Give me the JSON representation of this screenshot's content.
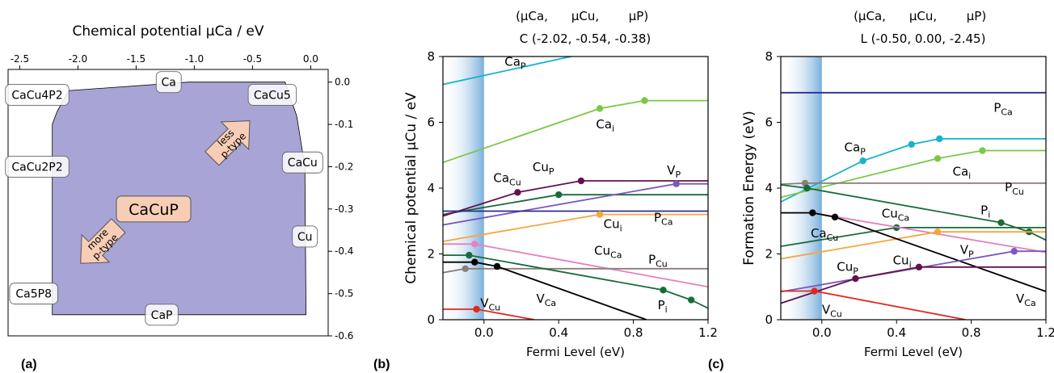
{
  "chart_data": [
    {
      "panel": "(a)",
      "type": "area",
      "top_axis_label": "Chemical potential μCa / eV",
      "top_ticks": [
        "-2.5",
        "-2.0",
        "-1.5",
        "-1.0",
        "-0.5",
        "0.0"
      ],
      "right_ticks": [
        "0.0",
        "-0.1",
        "-0.2",
        "-0.3",
        "-0.4",
        "-0.5",
        "-0.6"
      ],
      "x_range": [
        -2.6,
        0.15
      ],
      "y_range": [
        0.03,
        -0.6
      ],
      "region_color": "#a8a4d6",
      "region_polygon": [
        [
          -2.18,
          -0.07
        ],
        [
          -2.08,
          -0.02
        ],
        [
          -1.05,
          0.0
        ],
        [
          -0.22,
          0.0
        ],
        [
          -0.12,
          -0.08
        ],
        [
          -0.05,
          -0.2
        ],
        [
          -0.04,
          -0.55
        ],
        [
          -2.22,
          -0.55
        ],
        [
          -2.22,
          -0.1
        ]
      ],
      "region_label": "CaCuP",
      "region_label_color": "#f7cdb5",
      "phases": [
        {
          "label": "CaCu4P2",
          "x": -2.35,
          "y": -0.03
        },
        {
          "label": "Ca",
          "x": -1.22,
          "y": 0.0
        },
        {
          "label": "CaCu5",
          "x": -0.33,
          "y": -0.03
        },
        {
          "label": "CaCu",
          "x": -0.07,
          "y": -0.19
        },
        {
          "label": "CaCu2P2",
          "x": -2.35,
          "y": -0.2
        },
        {
          "label": "Cu",
          "x": -0.05,
          "y": -0.365
        },
        {
          "label": "Ca5P8",
          "x": -2.38,
          "y": -0.5
        },
        {
          "label": "CaP",
          "x": -1.28,
          "y": -0.55
        }
      ],
      "arrows": [
        {
          "label": "less p-type",
          "x": -0.7,
          "y": -0.14,
          "direction": "up-right"
        },
        {
          "label": "more p-type",
          "x": -1.8,
          "y": -0.38,
          "direction": "down-left"
        }
      ]
    },
    {
      "panel": "(b)",
      "type": "line",
      "header_symbols": [
        "(μCa,",
        "μCu,",
        "μP)"
      ],
      "header_values": "C (-2.02,  -0.54,  -0.38)",
      "xlabel": "Fermi Level (eV)",
      "ylabel": "Chemical potential μCu / eV",
      "xlim": [
        -0.22,
        1.2
      ],
      "ylim": [
        0,
        8
      ],
      "xticks": [
        "0.0",
        "0.4",
        "0.8",
        "1.2"
      ],
      "yticks": [
        "0",
        "2",
        "4",
        "6",
        "8"
      ],
      "band_edge": [
        -0.22,
        0.0
      ],
      "series": [
        {
          "name": "CaP",
          "color": "#17b3cc",
          "points": [
            [
              -0.22,
              7.15
            ],
            [
              0.87,
              8.5
            ]
          ],
          "dots": [],
          "label_at": [
            0.11,
            7.72
          ]
        },
        {
          "name": "Cai",
          "color": "#7cc747",
          "points": [
            [
              -0.22,
              4.78
            ],
            [
              0.62,
              6.42
            ],
            [
              0.86,
              6.66
            ],
            [
              1.2,
              6.66
            ]
          ],
          "dots": [
            [
              0.62,
              6.42
            ],
            [
              0.86,
              6.66
            ]
          ],
          "label_at": [
            0.6,
            5.82
          ]
        },
        {
          "name": "CaCu",
          "color": "#1a6b3a",
          "points": [
            [
              -0.22,
              3.2
            ],
            [
              0.4,
              3.8
            ],
            [
              1.2,
              3.8
            ]
          ],
          "dots": [
            [
              0.4,
              3.8
            ]
          ],
          "label_at": [
            0.05,
            4.18
          ]
        },
        {
          "name": "CuP",
          "color": "#64104f",
          "points": [
            [
              -0.22,
              3.15
            ],
            [
              0.18,
              3.87
            ],
            [
              0.52,
              4.22
            ],
            [
              1.2,
              4.22
            ]
          ],
          "dots": [
            [
              0.18,
              3.87
            ],
            [
              0.52,
              4.22
            ]
          ],
          "label_at": [
            0.26,
            4.52
          ]
        },
        {
          "name": "VP",
          "color": "#7b57c1",
          "points": [
            [
              -0.22,
              2.88
            ],
            [
              1.03,
              4.13
            ],
            [
              1.2,
              4.13
            ]
          ],
          "dots": [
            [
              1.03,
              4.13
            ]
          ],
          "label_at": [
            0.98,
            4.42
          ]
        },
        {
          "name": "PCa",
          "color": "#2b2d8c",
          "points": [
            [
              -0.22,
              3.3
            ],
            [
              1.2,
              3.3
            ]
          ],
          "dots": [],
          "label_at": [
            0.91,
            2.98
          ]
        },
        {
          "name": "Cui",
          "color": "#f5a53e",
          "points": [
            [
              -0.22,
              2.38
            ],
            [
              0.62,
              3.2
            ],
            [
              1.2,
              3.2
            ]
          ],
          "dots": [
            [
              0.62,
              3.2
            ]
          ],
          "label_at": [
            0.64,
            2.78
          ]
        },
        {
          "name": "CuCa",
          "color": "#e480bf",
          "points": [
            [
              -0.22,
              2.3
            ],
            [
              -0.05,
              2.3
            ],
            [
              1.2,
              1.0
            ]
          ],
          "dots": [
            [
              -0.05,
              2.3
            ]
          ],
          "label_at": [
            0.59,
            1.98
          ]
        },
        {
          "name": "PCu",
          "color": "#8c7d78",
          "points": [
            [
              -0.22,
              1.43
            ],
            [
              -0.1,
              1.55
            ],
            [
              1.2,
              1.55
            ]
          ],
          "dots": [
            [
              -0.1,
              1.55
            ]
          ],
          "label_at": [
            0.88,
            1.7
          ]
        },
        {
          "name": "Pi",
          "color": "#1a6b3a",
          "points": [
            [
              -0.22,
              1.96
            ],
            [
              -0.08,
              1.96
            ],
            [
              0.96,
              0.9
            ],
            [
              1.11,
              0.6
            ],
            [
              1.2,
              0.35
            ]
          ],
          "dots": [
            [
              -0.08,
              1.96
            ],
            [
              0.96,
              0.9
            ],
            [
              1.11,
              0.6
            ]
          ],
          "label_at": [
            0.93,
            0.32
          ]
        },
        {
          "name": "VCa",
          "color": "#000000",
          "points": [
            [
              -0.22,
              1.75
            ],
            [
              -0.05,
              1.75
            ],
            [
              0.07,
              1.62
            ],
            [
              0.87,
              0.0
            ]
          ],
          "dots": [
            [
              -0.05,
              1.75
            ],
            [
              0.07,
              1.62
            ]
          ],
          "label_at": [
            0.28,
            0.52
          ]
        },
        {
          "name": "VCu",
          "color": "#e0281f",
          "points": [
            [
              -0.22,
              0.32
            ],
            [
              -0.04,
              0.32
            ],
            [
              0.27,
              0.0
            ]
          ],
          "dots": [
            [
              -0.04,
              0.32
            ]
          ],
          "label_at": [
            -0.02,
            0.38
          ]
        }
      ]
    },
    {
      "panel": "(c)",
      "type": "line",
      "header_symbols": [
        "(μCa,",
        "μCu,",
        "μP)"
      ],
      "header_values": "L (-0.50,  0.00,  -2.45)",
      "xlabel": "Fermi Level (eV)",
      "ylabel": "Formation Energy (eV)",
      "xlim": [
        -0.22,
        1.2
      ],
      "ylim": [
        0,
        8
      ],
      "xticks": [
        "0.0",
        "0.4",
        "0.8",
        "1.2"
      ],
      "yticks": [
        "0",
        "2",
        "4",
        "6",
        "8"
      ],
      "band_edge": [
        -0.22,
        0.0
      ],
      "series": [
        {
          "name": "PCa",
          "color": "#2b2d8c",
          "points": [
            [
              -0.22,
              6.9
            ],
            [
              1.2,
              6.9
            ]
          ],
          "dots": [],
          "label_at": [
            0.92,
            6.32
          ]
        },
        {
          "name": "CaP",
          "color": "#17b3cc",
          "points": [
            [
              -0.22,
              3.58
            ],
            [
              0.22,
              4.83
            ],
            [
              0.48,
              5.33
            ],
            [
              0.63,
              5.5
            ],
            [
              1.2,
              5.5
            ]
          ],
          "dots": [
            [
              0.22,
              4.83
            ],
            [
              0.48,
              5.33
            ],
            [
              0.63,
              5.5
            ]
          ],
          "label_at": [
            0.12,
            5.12
          ]
        },
        {
          "name": "Cai",
          "color": "#7cc747",
          "points": [
            [
              -0.22,
              3.72
            ],
            [
              0.62,
              4.9
            ],
            [
              0.86,
              5.14
            ],
            [
              1.2,
              5.14
            ]
          ],
          "dots": [
            [
              0.62,
              4.9
            ],
            [
              0.86,
              5.14
            ]
          ],
          "label_at": [
            0.7,
            4.38
          ]
        },
        {
          "name": "PCu",
          "color": "#8c7d78",
          "points": [
            [
              -0.22,
              4.12
            ],
            [
              -0.09,
              4.15
            ],
            [
              1.2,
              4.15
            ]
          ],
          "dots": [
            [
              -0.09,
              4.15
            ]
          ],
          "label_at": [
            0.98,
            3.9
          ]
        },
        {
          "name": "Pi",
          "color": "#1a6b3a",
          "points": [
            [
              -0.22,
              4.1
            ],
            [
              -0.08,
              4.0
            ],
            [
              0.96,
              2.95
            ],
            [
              1.11,
              2.67
            ],
            [
              1.2,
              2.42
            ]
          ],
          "dots": [
            [
              -0.08,
              4.0
            ],
            [
              0.96,
              2.95
            ],
            [
              1.11,
              2.67
            ]
          ],
          "label_at": [
            0.85,
            3.2
          ]
        },
        {
          "name": "CaCu",
          "color": "#1a6b3a",
          "points": [
            [
              -0.22,
              2.23
            ],
            [
              0.4,
              2.8
            ],
            [
              1.2,
              2.8
            ]
          ],
          "dots": [
            [
              0.4,
              2.8
            ]
          ],
          "label_at": [
            -0.06,
            2.5
          ]
        },
        {
          "name": "CuCa",
          "color": "#e480bf",
          "points": [
            [
              -0.22,
              3.25
            ],
            [
              -0.05,
              3.25
            ],
            [
              1.2,
              2.05
            ]
          ],
          "dots": [
            [
              -0.05,
              3.25
            ]
          ],
          "label_at": [
            0.32,
            3.1
          ]
        },
        {
          "name": "Cui",
          "color": "#f5a53e",
          "points": [
            [
              -0.22,
              1.85
            ],
            [
              0.62,
              2.67
            ],
            [
              1.2,
              2.67
            ]
          ],
          "dots": [
            [
              0.62,
              2.67
            ]
          ],
          "label_at": [
            0.38,
            1.68
          ]
        },
        {
          "name": "VCa",
          "color": "#000000",
          "points": [
            [
              -0.22,
              3.25
            ],
            [
              -0.05,
              3.25
            ],
            [
              0.07,
              3.12
            ],
            [
              1.2,
              0.86
            ]
          ],
          "dots": [
            [
              -0.05,
              3.25
            ],
            [
              0.07,
              3.12
            ]
          ],
          "label_at": [
            1.04,
            0.52
          ]
        },
        {
          "name": "VP",
          "color": "#7b57c1",
          "points": [
            [
              -0.22,
              0.85
            ],
            [
              1.03,
              2.08
            ],
            [
              1.2,
              2.08
            ]
          ],
          "dots": [
            [
              1.03,
              2.08
            ]
          ],
          "label_at": [
            0.74,
            2.0
          ]
        },
        {
          "name": "CuP",
          "color": "#64104f",
          "points": [
            [
              -0.22,
              0.5
            ],
            [
              0.18,
              1.25
            ],
            [
              0.52,
              1.6
            ],
            [
              1.2,
              1.6
            ]
          ],
          "dots": [
            [
              0.18,
              1.25
            ],
            [
              0.52,
              1.6
            ]
          ],
          "label_at": [
            0.08,
            1.48
          ]
        },
        {
          "name": "VCu",
          "color": "#e0281f",
          "points": [
            [
              -0.22,
              0.87
            ],
            [
              -0.04,
              0.87
            ],
            [
              0.77,
              0.0
            ]
          ],
          "dots": [
            [
              -0.04,
              0.87
            ]
          ],
          "label_at": [
            0.0,
            0.18
          ]
        }
      ]
    }
  ]
}
